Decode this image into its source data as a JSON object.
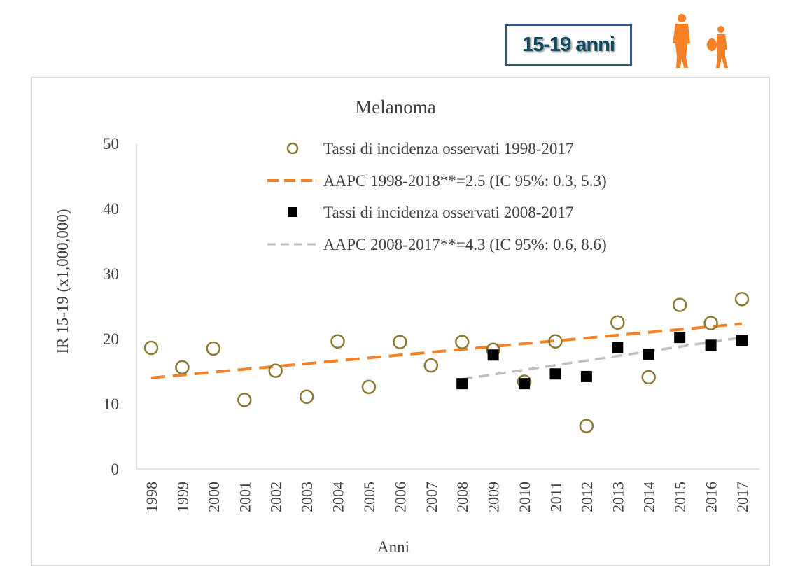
{
  "header": {
    "age_badge": "15-19 anni",
    "icon": "teenagers-silhouette-icon",
    "accent_color": "#f58025",
    "badge_border_color": "#34577f"
  },
  "chart_data": {
    "type": "scatter",
    "title": "Melanoma",
    "xlabel": "Anni",
    "ylabel": "IR 15-19 (x1,000,000)",
    "ylim": [
      0,
      50
    ],
    "yticks": [
      0,
      10,
      20,
      30,
      40,
      50
    ],
    "categories": [
      "1998",
      "1999",
      "2000",
      "2001",
      "2002",
      "2003",
      "2004",
      "2005",
      "2006",
      "2007",
      "2008",
      "2009",
      "2010",
      "2011",
      "2012",
      "2013",
      "2014",
      "2015",
      "2016",
      "2017"
    ],
    "grid": false,
    "legend_position": "top-right",
    "series": [
      {
        "name": "Tassi di incidenza osservati 1998-2017",
        "type": "scatter",
        "marker": "open-circle",
        "color": "#8b7a34",
        "x": [
          "1998",
          "1999",
          "2000",
          "2001",
          "2002",
          "2003",
          "2004",
          "2005",
          "2006",
          "2007",
          "2008",
          "2009",
          "2010",
          "2011",
          "2012",
          "2013",
          "2014",
          "2015",
          "2016",
          "2017"
        ],
        "values": [
          18.6,
          15.6,
          18.5,
          10.6,
          15.1,
          11.1,
          19.6,
          12.6,
          19.5,
          15.9,
          19.5,
          18.3,
          13.4,
          19.6,
          6.6,
          22.5,
          14.1,
          25.2,
          22.4,
          26.1
        ]
      },
      {
        "name": "AAPC 1998-2018**=2.5 (IC 95%: 0.3, 5.3)",
        "type": "line",
        "style": "dashed",
        "color": "#f58025",
        "x": [
          "1998",
          "2017"
        ],
        "values": [
          14.0,
          22.3
        ]
      },
      {
        "name": "Tassi di incidenza osservati 2008-2017",
        "type": "scatter",
        "marker": "filled-square",
        "color": "#000000",
        "x": [
          "2008",
          "2009",
          "2010",
          "2011",
          "2012",
          "2013",
          "2014",
          "2015",
          "2016",
          "2017"
        ],
        "values": [
          13.1,
          17.5,
          13.1,
          14.6,
          14.2,
          18.6,
          17.6,
          20.2,
          19.0,
          19.7
        ]
      },
      {
        "name": "AAPC 2008-2017**=4.3 (IC 95%: 0.6, 8.6)",
        "type": "line",
        "style": "dashed",
        "color": "#bfbfbf",
        "x": [
          "2008",
          "2017"
        ],
        "values": [
          13.8,
          20.2
        ]
      }
    ]
  }
}
